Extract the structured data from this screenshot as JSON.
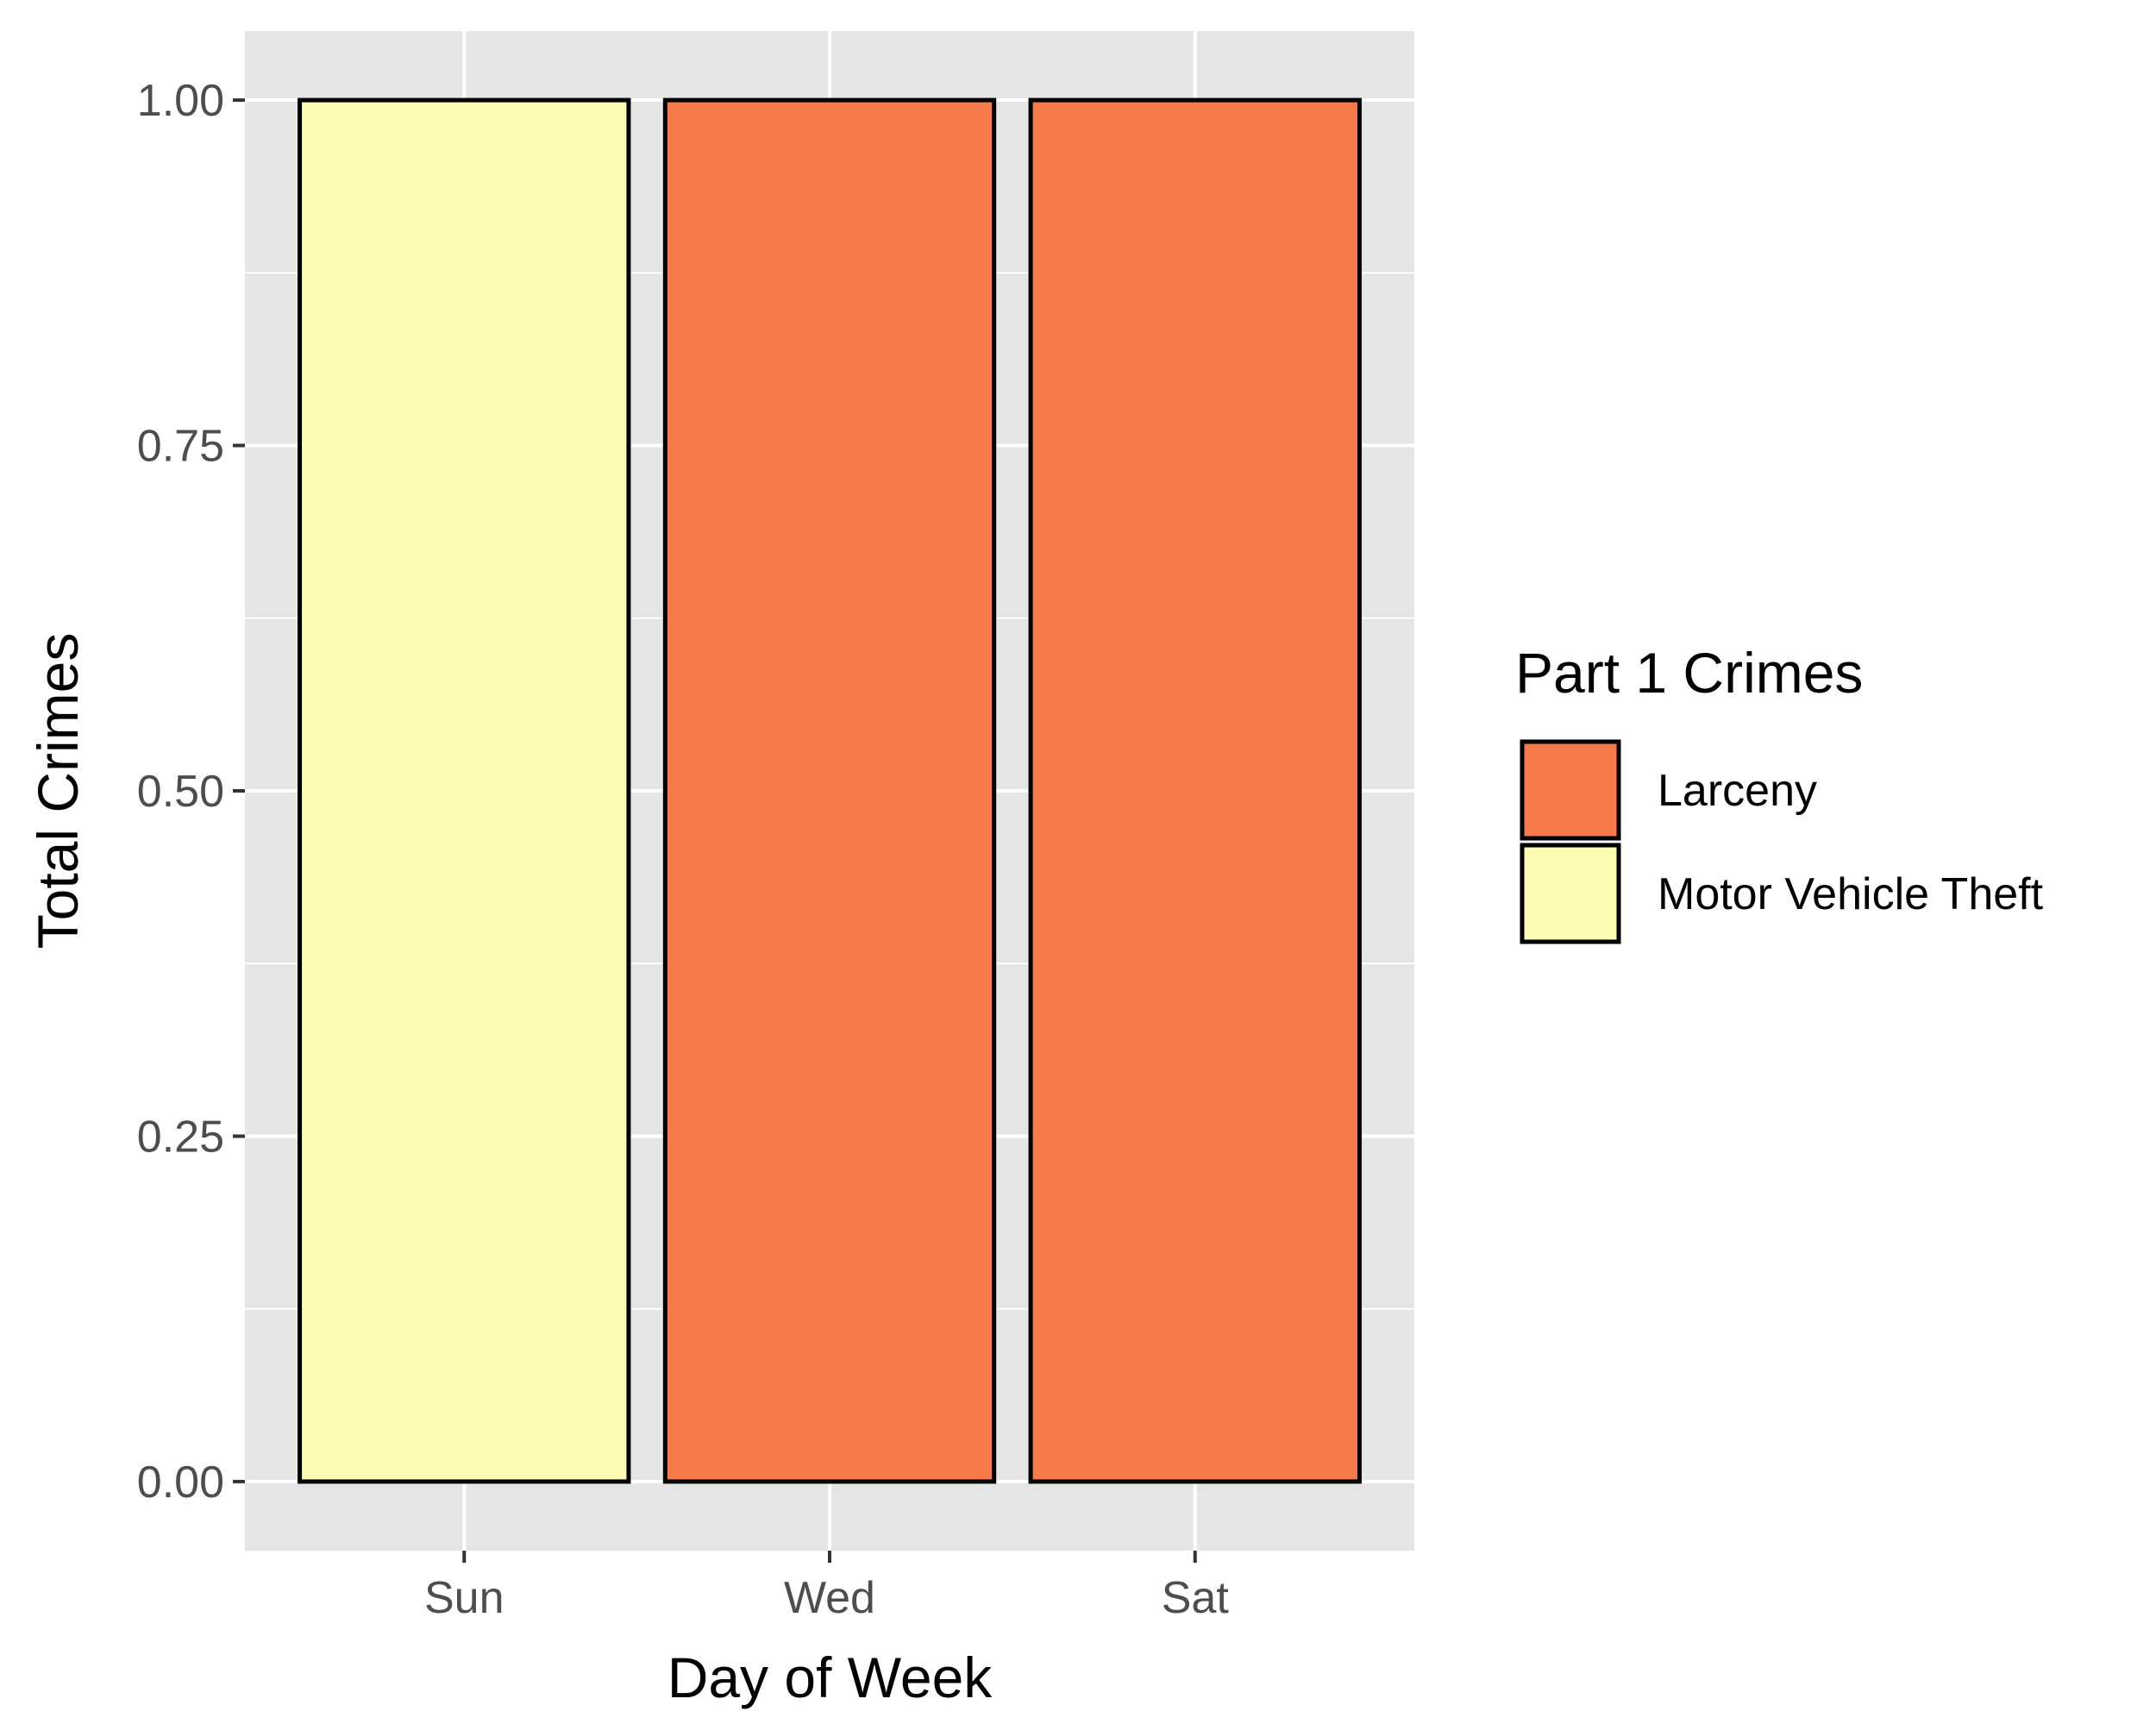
{
  "chart_data": {
    "type": "bar",
    "title": "",
    "xlabel": "Day of Week",
    "ylabel": "Total Crimes",
    "categories": [
      "Sun",
      "Wed",
      "Sat"
    ],
    "values": [
      1,
      1,
      1
    ],
    "bar_crime": [
      "Motor Vehicle Theft",
      "Larceny",
      "Larceny"
    ],
    "ylim": [
      -0.05,
      1.05
    ],
    "yticks": [
      0,
      0.25,
      0.5,
      0.75,
      1
    ],
    "ytick_labels": [
      "0.00",
      "0.25",
      "0.50",
      "0.75",
      "1.00"
    ],
    "grid": true,
    "legend": {
      "title": "Part 1 Crimes",
      "position": "right",
      "entries": [
        {
          "label": "Larceny",
          "color": "#f67a4a"
        },
        {
          "label": "Motor Vehicle Theft",
          "color": "#fdfdb2"
        }
      ]
    },
    "colors": {
      "panel_background": "#e5e5e5",
      "gridline": "#ffffff",
      "bar_outline": "#000000"
    }
  }
}
